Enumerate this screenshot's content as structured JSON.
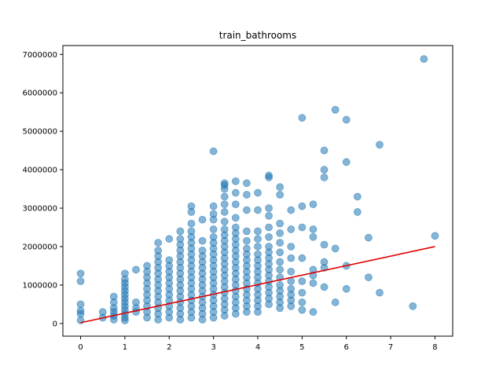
{
  "chart_data": {
    "type": "scatter",
    "title": "train_bathrooms",
    "xlabel": "",
    "ylabel": "",
    "xlim": [
      -0.4,
      8.4
    ],
    "ylim": [
      -330000,
      7230000
    ],
    "x_ticks": [
      0,
      1,
      2,
      3,
      4,
      5,
      6,
      7,
      8
    ],
    "y_ticks": [
      0,
      1000000,
      2000000,
      3000000,
      4000000,
      5000000,
      6000000,
      7000000
    ],
    "x_tick_labels": [
      "0",
      "1",
      "2",
      "3",
      "4",
      "5",
      "6",
      "7",
      "8"
    ],
    "y_tick_labels": [
      "0",
      "1000000",
      "2000000",
      "3000000",
      "4000000",
      "5000000",
      "6000000",
      "7000000"
    ],
    "grid": false,
    "marker_color": "#1f77b4",
    "marker_alpha": 0.55,
    "scatter_points": [
      [
        0,
        80000
      ],
      [
        0,
        250000
      ],
      [
        0,
        330000
      ],
      [
        0,
        500000
      ],
      [
        0,
        1100000
      ],
      [
        0,
        1300000
      ],
      [
        0.5,
        150000
      ],
      [
        0.5,
        300000
      ],
      [
        0.75,
        100000
      ],
      [
        0.75,
        200000
      ],
      [
        0.75,
        300000
      ],
      [
        0.75,
        400000
      ],
      [
        0.75,
        550000
      ],
      [
        0.75,
        700000
      ],
      [
        1,
        80000
      ],
      [
        1,
        150000
      ],
      [
        1,
        250000
      ],
      [
        1,
        350000
      ],
      [
        1,
        450000
      ],
      [
        1,
        550000
      ],
      [
        1,
        650000
      ],
      [
        1,
        750000
      ],
      [
        1,
        850000
      ],
      [
        1,
        950000
      ],
      [
        1,
        1050000
      ],
      [
        1,
        1150000
      ],
      [
        1,
        1300000
      ],
      [
        1.25,
        300000
      ],
      [
        1.25,
        400000
      ],
      [
        1.25,
        550000
      ],
      [
        1.25,
        1400000
      ],
      [
        1.5,
        150000
      ],
      [
        1.5,
        300000
      ],
      [
        1.5,
        450000
      ],
      [
        1.5,
        600000
      ],
      [
        1.5,
        750000
      ],
      [
        1.5,
        900000
      ],
      [
        1.5,
        1050000
      ],
      [
        1.5,
        1200000
      ],
      [
        1.5,
        1350000
      ],
      [
        1.5,
        1500000
      ],
      [
        1.75,
        100000
      ],
      [
        1.75,
        250000
      ],
      [
        1.75,
        400000
      ],
      [
        1.75,
        550000
      ],
      [
        1.75,
        700000
      ],
      [
        1.75,
        850000
      ],
      [
        1.75,
        1000000
      ],
      [
        1.75,
        1150000
      ],
      [
        1.75,
        1300000
      ],
      [
        1.75,
        1450000
      ],
      [
        1.75,
        1600000
      ],
      [
        1.75,
        1750000
      ],
      [
        1.75,
        1900000
      ],
      [
        1.75,
        2100000
      ],
      [
        2,
        150000
      ],
      [
        2,
        300000
      ],
      [
        2,
        450000
      ],
      [
        2,
        600000
      ],
      [
        2,
        750000
      ],
      [
        2,
        900000
      ],
      [
        2,
        1050000
      ],
      [
        2,
        1200000
      ],
      [
        2,
        1350000
      ],
      [
        2,
        1500000
      ],
      [
        2,
        1650000
      ],
      [
        2,
        2200000
      ],
      [
        2.25,
        100000
      ],
      [
        2.25,
        250000
      ],
      [
        2.25,
        400000
      ],
      [
        2.25,
        550000
      ],
      [
        2.25,
        700000
      ],
      [
        2.25,
        850000
      ],
      [
        2.25,
        1000000
      ],
      [
        2.25,
        1150000
      ],
      [
        2.25,
        1300000
      ],
      [
        2.25,
        1450000
      ],
      [
        2.25,
        1600000
      ],
      [
        2.25,
        1750000
      ],
      [
        2.25,
        1900000
      ],
      [
        2.25,
        2050000
      ],
      [
        2.25,
        2200000
      ],
      [
        2.25,
        2400000
      ],
      [
        2.5,
        150000
      ],
      [
        2.5,
        300000
      ],
      [
        2.5,
        450000
      ],
      [
        2.5,
        600000
      ],
      [
        2.5,
        750000
      ],
      [
        2.5,
        900000
      ],
      [
        2.5,
        1050000
      ],
      [
        2.5,
        1200000
      ],
      [
        2.5,
        1350000
      ],
      [
        2.5,
        1500000
      ],
      [
        2.5,
        1650000
      ],
      [
        2.5,
        1800000
      ],
      [
        2.5,
        1950000
      ],
      [
        2.5,
        2100000
      ],
      [
        2.5,
        2250000
      ],
      [
        2.5,
        2400000
      ],
      [
        2.5,
        2600000
      ],
      [
        2.5,
        2900000
      ],
      [
        2.5,
        3050000
      ],
      [
        2.75,
        100000
      ],
      [
        2.75,
        250000
      ],
      [
        2.75,
        400000
      ],
      [
        2.75,
        550000
      ],
      [
        2.75,
        700000
      ],
      [
        2.75,
        850000
      ],
      [
        2.75,
        1000000
      ],
      [
        2.75,
        1150000
      ],
      [
        2.75,
        1300000
      ],
      [
        2.75,
        1450000
      ],
      [
        2.75,
        1600000
      ],
      [
        2.75,
        1750000
      ],
      [
        2.75,
        1900000
      ],
      [
        2.75,
        2150000
      ],
      [
        2.75,
        2700000
      ],
      [
        3,
        150000
      ],
      [
        3,
        300000
      ],
      [
        3,
        450000
      ],
      [
        3,
        600000
      ],
      [
        3,
        750000
      ],
      [
        3,
        900000
      ],
      [
        3,
        1050000
      ],
      [
        3,
        1200000
      ],
      [
        3,
        1350000
      ],
      [
        3,
        1500000
      ],
      [
        3,
        1650000
      ],
      [
        3,
        1800000
      ],
      [
        3,
        1950000
      ],
      [
        3,
        2100000
      ],
      [
        3,
        2250000
      ],
      [
        3,
        2450000
      ],
      [
        3,
        2700000
      ],
      [
        3,
        2850000
      ],
      [
        3,
        3050000
      ],
      [
        3,
        4480000
      ],
      [
        3.25,
        200000
      ],
      [
        3.25,
        350000
      ],
      [
        3.25,
        500000
      ],
      [
        3.25,
        650000
      ],
      [
        3.25,
        800000
      ],
      [
        3.25,
        950000
      ],
      [
        3.25,
        1100000
      ],
      [
        3.25,
        1250000
      ],
      [
        3.25,
        1400000
      ],
      [
        3.25,
        1550000
      ],
      [
        3.25,
        1700000
      ],
      [
        3.25,
        1850000
      ],
      [
        3.25,
        2000000
      ],
      [
        3.25,
        2150000
      ],
      [
        3.25,
        2300000
      ],
      [
        3.25,
        2450000
      ],
      [
        3.25,
        2650000
      ],
      [
        3.25,
        2900000
      ],
      [
        3.25,
        3100000
      ],
      [
        3.25,
        3300000
      ],
      [
        3.25,
        3500000
      ],
      [
        3.25,
        3600000
      ],
      [
        3.25,
        3650000
      ],
      [
        3.5,
        250000
      ],
      [
        3.5,
        400000
      ],
      [
        3.5,
        550000
      ],
      [
        3.5,
        700000
      ],
      [
        3.5,
        850000
      ],
      [
        3.5,
        1000000
      ],
      [
        3.5,
        1150000
      ],
      [
        3.5,
        1300000
      ],
      [
        3.5,
        1450000
      ],
      [
        3.5,
        1600000
      ],
      [
        3.5,
        1750000
      ],
      [
        3.5,
        1900000
      ],
      [
        3.5,
        2050000
      ],
      [
        3.5,
        2200000
      ],
      [
        3.5,
        2350000
      ],
      [
        3.5,
        2500000
      ],
      [
        3.5,
        2750000
      ],
      [
        3.5,
        3100000
      ],
      [
        3.5,
        3400000
      ],
      [
        3.5,
        3700000
      ],
      [
        3.75,
        300000
      ],
      [
        3.75,
        450000
      ],
      [
        3.75,
        600000
      ],
      [
        3.75,
        750000
      ],
      [
        3.75,
        900000
      ],
      [
        3.75,
        1050000
      ],
      [
        3.75,
        1200000
      ],
      [
        3.75,
        1350000
      ],
      [
        3.75,
        1500000
      ],
      [
        3.75,
        1650000
      ],
      [
        3.75,
        1800000
      ],
      [
        3.75,
        1950000
      ],
      [
        3.75,
        2150000
      ],
      [
        3.75,
        2400000
      ],
      [
        3.75,
        2950000
      ],
      [
        3.75,
        3350000
      ],
      [
        3.75,
        3650000
      ],
      [
        4,
        300000
      ],
      [
        4,
        450000
      ],
      [
        4,
        600000
      ],
      [
        4,
        750000
      ],
      [
        4,
        900000
      ],
      [
        4,
        1050000
      ],
      [
        4,
        1200000
      ],
      [
        4,
        1350000
      ],
      [
        4,
        1500000
      ],
      [
        4,
        1650000
      ],
      [
        4,
        1800000
      ],
      [
        4,
        2000000
      ],
      [
        4,
        2200000
      ],
      [
        4,
        2400000
      ],
      [
        4,
        2950000
      ],
      [
        4,
        3400000
      ],
      [
        4.25,
        500000
      ],
      [
        4.25,
        650000
      ],
      [
        4.25,
        800000
      ],
      [
        4.25,
        950000
      ],
      [
        4.25,
        1100000
      ],
      [
        4.25,
        1250000
      ],
      [
        4.25,
        1400000
      ],
      [
        4.25,
        1550000
      ],
      [
        4.25,
        1700000
      ],
      [
        4.25,
        1850000
      ],
      [
        4.25,
        2000000
      ],
      [
        4.25,
        2250000
      ],
      [
        4.25,
        2500000
      ],
      [
        4.25,
        2800000
      ],
      [
        4.25,
        3000000
      ],
      [
        4.25,
        3800000
      ],
      [
        4.25,
        3850000
      ],
      [
        4.5,
        400000
      ],
      [
        4.5,
        550000
      ],
      [
        4.5,
        700000
      ],
      [
        4.5,
        850000
      ],
      [
        4.5,
        1000000
      ],
      [
        4.5,
        1200000
      ],
      [
        4.5,
        1400000
      ],
      [
        4.5,
        1600000
      ],
      [
        4.5,
        1850000
      ],
      [
        4.5,
        2100000
      ],
      [
        4.5,
        2350000
      ],
      [
        4.5,
        2600000
      ],
      [
        4.5,
        3350000
      ],
      [
        4.5,
        3550000
      ],
      [
        4.75,
        450000
      ],
      [
        4.75,
        600000
      ],
      [
        4.75,
        750000
      ],
      [
        4.75,
        900000
      ],
      [
        4.75,
        1100000
      ],
      [
        4.75,
        1350000
      ],
      [
        4.75,
        1700000
      ],
      [
        4.75,
        2000000
      ],
      [
        4.75,
        2450000
      ],
      [
        4.75,
        2950000
      ],
      [
        5,
        350000
      ],
      [
        5,
        550000
      ],
      [
        5,
        800000
      ],
      [
        5,
        1100000
      ],
      [
        5,
        1700000
      ],
      [
        5,
        2500000
      ],
      [
        5,
        3050000
      ],
      [
        5,
        5350000
      ],
      [
        5.25,
        300000
      ],
      [
        5.25,
        1050000
      ],
      [
        5.25,
        1250000
      ],
      [
        5.25,
        1400000
      ],
      [
        5.25,
        2250000
      ],
      [
        5.25,
        2450000
      ],
      [
        5.25,
        3100000
      ],
      [
        5.5,
        950000
      ],
      [
        5.5,
        1450000
      ],
      [
        5.5,
        1600000
      ],
      [
        5.5,
        2050000
      ],
      [
        5.5,
        3800000
      ],
      [
        5.5,
        4000000
      ],
      [
        5.5,
        4500000
      ],
      [
        5.75,
        550000
      ],
      [
        5.75,
        1950000
      ],
      [
        5.75,
        5560000
      ],
      [
        6,
        900000
      ],
      [
        6,
        1500000
      ],
      [
        6,
        4200000
      ],
      [
        6,
        5300000
      ],
      [
        6.25,
        2900000
      ],
      [
        6.25,
        3300000
      ],
      [
        6.5,
        1200000
      ],
      [
        6.5,
        2230000
      ],
      [
        6.75,
        800000
      ],
      [
        6.75,
        4650000
      ],
      [
        7.5,
        450000
      ],
      [
        7.75,
        6880000
      ],
      [
        8,
        2280000
      ]
    ],
    "regression_line": {
      "color": "#e00000",
      "x": [
        0,
        8
      ],
      "y": [
        20000,
        2000000
      ]
    }
  }
}
